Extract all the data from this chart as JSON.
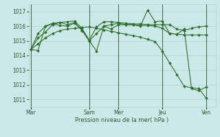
{
  "background_color": "#cce8e8",
  "grid_color": "#aad4d4",
  "line_color": "#2d6e2d",
  "xlabel": "Pression niveau de la mer( hPa )",
  "ylim": [
    1010.5,
    1017.5
  ],
  "yticks": [
    1011,
    1012,
    1013,
    1014,
    1015,
    1016,
    1017
  ],
  "xtick_labels": [
    "Mar",
    "",
    "Sam",
    "Mer",
    "",
    "Jeu",
    "",
    "Ven"
  ],
  "vline_positions": [
    0,
    8,
    12,
    18,
    24
  ],
  "vline_labels": [
    "Mar",
    "Sam",
    "Mer",
    "Jeu",
    "Ven"
  ],
  "xlim": [
    -0.3,
    25.3
  ],
  "n_points": 25,
  "s1_x": [
    0,
    1,
    2,
    3,
    4,
    5,
    6,
    7,
    8,
    9,
    10,
    11,
    12,
    13,
    14,
    15,
    16,
    17,
    18,
    19,
    20,
    21,
    22,
    23,
    24
  ],
  "s1_y": [
    1014.4,
    1014.35,
    1016.0,
    1016.15,
    1016.05,
    1016.0,
    1016.2,
    1015.75,
    1015.0,
    1014.3,
    1016.0,
    1015.8,
    1016.1,
    1016.1,
    1016.1,
    1016.0,
    1017.1,
    1016.3,
    1016.35,
    1015.5,
    1015.45,
    1015.8,
    1011.75,
    1011.6,
    1011.85
  ],
  "s2_x": [
    0,
    1,
    2,
    3,
    4,
    5,
    6,
    7,
    8,
    9,
    10,
    11,
    12,
    13,
    14,
    15,
    16,
    17,
    18,
    19,
    20,
    21,
    22,
    23,
    24
  ],
  "s2_y": [
    1014.4,
    1015.2,
    1015.6,
    1016.1,
    1016.25,
    1016.1,
    1016.25,
    1015.7,
    1015.0,
    1015.5,
    1016.0,
    1016.1,
    1016.2,
    1016.1,
    1016.1,
    1016.05,
    1016.05,
    1016.0,
    1015.85,
    1015.5,
    1015.45,
    1015.4,
    1015.4,
    1015.4,
    1015.4
  ],
  "s3_x": [
    0,
    1,
    2,
    3,
    4,
    5,
    6,
    7,
    8,
    9,
    10,
    11,
    12,
    13,
    14,
    15,
    16,
    17,
    18,
    19,
    20,
    21,
    22,
    23,
    24
  ],
  "s3_y": [
    1014.4,
    1015.5,
    1016.0,
    1016.2,
    1016.25,
    1016.3,
    1016.35,
    1015.85,
    1015.05,
    1015.95,
    1016.3,
    1016.3,
    1016.25,
    1016.2,
    1016.15,
    1016.15,
    1016.1,
    1016.1,
    1016.1,
    1016.1,
    1015.8,
    1015.7,
    1015.85,
    1015.95,
    1016.0
  ],
  "s4_x": [
    0,
    1,
    2,
    3,
    4,
    5,
    6,
    7,
    8,
    9,
    10,
    11,
    12,
    13,
    14,
    15,
    16,
    17,
    18,
    19,
    20,
    21,
    22,
    23,
    24
  ],
  "s4_y": [
    1014.4,
    1014.8,
    1015.2,
    1015.5,
    1015.7,
    1015.8,
    1015.85,
    1015.9,
    1015.95,
    1015.85,
    1015.75,
    1015.65,
    1015.55,
    1015.45,
    1015.35,
    1015.25,
    1015.1,
    1014.95,
    1014.3,
    1013.5,
    1012.7,
    1011.9,
    1011.8,
    1011.75,
    1011.1
  ]
}
